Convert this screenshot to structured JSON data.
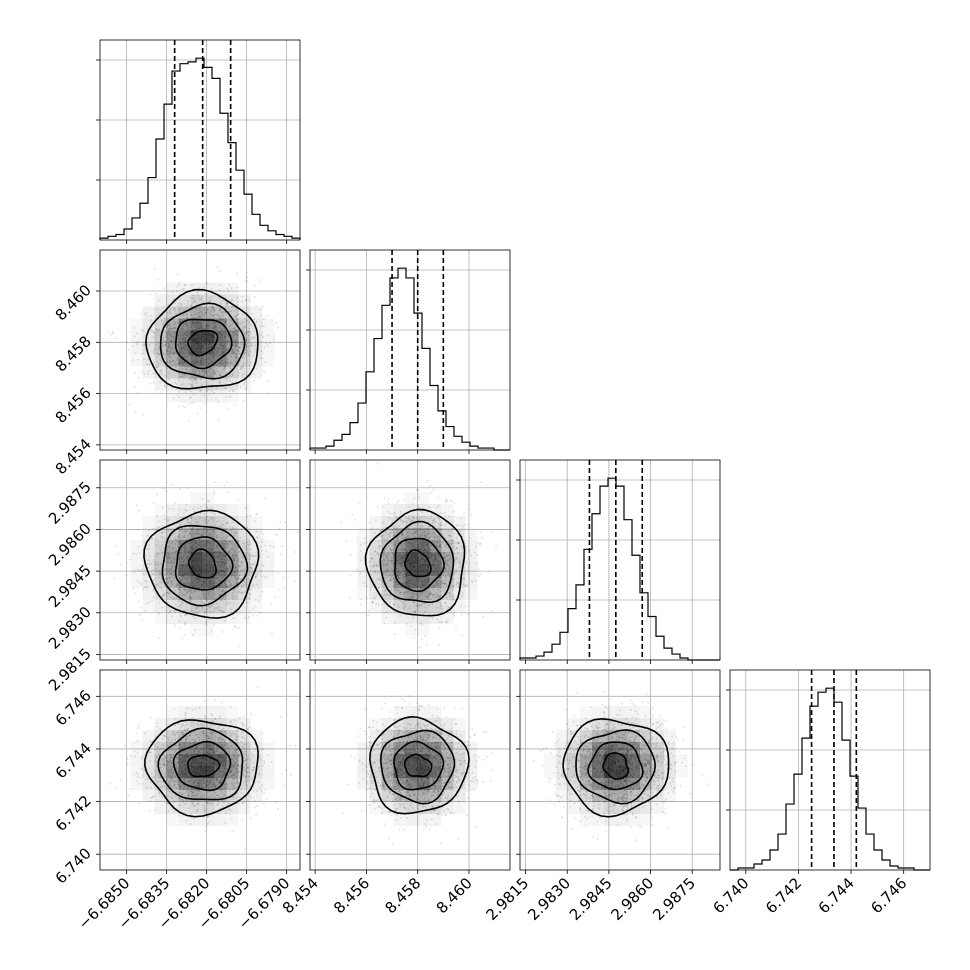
{
  "chart_data": {
    "type": "corner",
    "parameters": [
      {
        "mean": -6.68215,
        "sd": 0.00105,
        "lim": [
          -6.686,
          -6.6785
        ],
        "ticks": [
          -6.685,
          -6.6835,
          -6.682,
          -6.6805,
          -6.679
        ],
        "tick_labels": [
          "−6.6850",
          "−6.6835",
          "−6.6820",
          "−6.6805",
          "−6.6790"
        ],
        "quantiles": [
          -6.6832,
          -6.68215,
          -6.6811
        ]
      },
      {
        "mean": 8.458,
        "sd": 0.00095,
        "lim": [
          8.4538,
          8.4616
        ],
        "ticks": [
          8.454,
          8.456,
          8.458,
          8.46
        ],
        "tick_labels": [
          "8.454",
          "8.456",
          "8.458",
          "8.460"
        ],
        "quantiles": [
          8.457,
          8.458,
          8.459
        ]
      },
      {
        "mean": 2.98475,
        "sd": 0.00095,
        "lim": [
          2.9813,
          2.9885
        ],
        "ticks": [
          2.9815,
          2.983,
          2.9845,
          2.986,
          2.9875
        ],
        "tick_labels": [
          "2.9815",
          "2.9830",
          "2.9845",
          "2.9860",
          "2.9875"
        ],
        "quantiles": [
          2.9838,
          2.98475,
          2.9857
        ]
      },
      {
        "mean": 6.74335,
        "sd": 0.0009,
        "lim": [
          6.7394,
          6.747
        ],
        "ticks": [
          6.74,
          6.742,
          6.744,
          6.746
        ],
        "tick_labels": [
          "6.740",
          "6.742",
          "6.744",
          "6.746"
        ],
        "quantiles": [
          6.7425,
          6.74335,
          6.7442
        ]
      }
    ],
    "histograms": [
      {
        "bins": [
          -6.686,
          -6.6785
        ],
        "counts": [
          1,
          2,
          3,
          6,
          12,
          20,
          34,
          55,
          74,
          92,
          96,
          97,
          99,
          94,
          88,
          69,
          53,
          38,
          25,
          14,
          8,
          5,
          3,
          2,
          1
        ]
      },
      {
        "bins": [
          8.4538,
          8.4616
        ],
        "counts": [
          1,
          1,
          2,
          5,
          8,
          14,
          24,
          40,
          57,
          74,
          88,
          93,
          88,
          70,
          52,
          33,
          20,
          12,
          7,
          4,
          2,
          1,
          1,
          0,
          0
        ]
      },
      {
        "bins": [
          2.9813,
          2.9885
        ],
        "counts": [
          1,
          1,
          2,
          4,
          8,
          14,
          26,
          38,
          56,
          74,
          88,
          92,
          88,
          71,
          53,
          34,
          22,
          12,
          6,
          3,
          1,
          0,
          0,
          0,
          0
        ]
      },
      {
        "bins": [
          6.7394,
          6.747
        ],
        "counts": [
          0,
          1,
          1,
          3,
          5,
          10,
          18,
          33,
          48,
          66,
          82,
          89,
          91,
          84,
          65,
          47,
          31,
          18,
          10,
          5,
          2,
          1,
          1,
          0,
          0
        ]
      }
    ],
    "contour_levels": [
      "0.5-sigma",
      "1-sigma",
      "1.5-sigma",
      "2-sigma"
    ],
    "samples_per_scatter": 1500,
    "grid": true,
    "colors": {
      "lines": "#000000",
      "density": "#000000",
      "grid": "#b0b0b0"
    }
  }
}
